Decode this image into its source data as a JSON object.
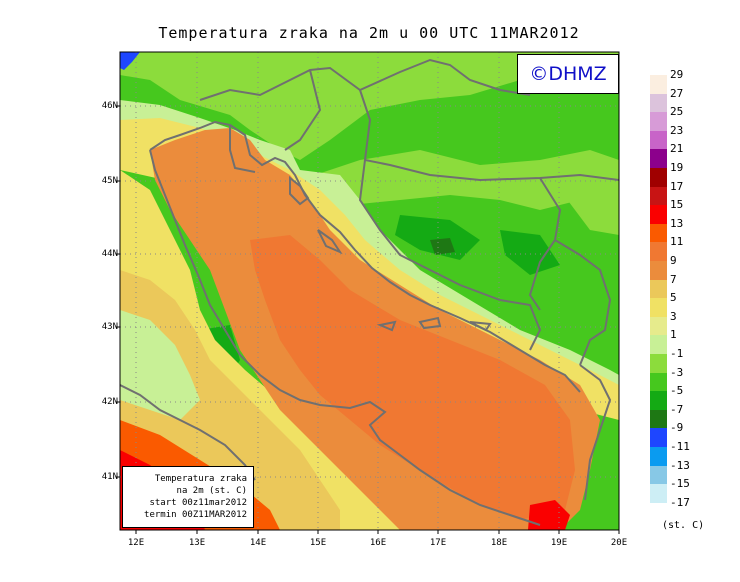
{
  "title": "Temperatura zraka na 2m u 00 UTC 11MAR2012",
  "logo": "©DHMZ",
  "lat_labels": [
    "46N",
    "45N",
    "44N",
    "43N",
    "42N",
    "41N"
  ],
  "lon_labels": [
    "12E",
    "13E",
    "14E",
    "15E",
    "16E",
    "17E",
    "18E",
    "19E",
    "20E"
  ],
  "infobox": {
    "line1": "Temperatura zraka",
    "line2": "na 2m (st. C)",
    "line3": "start 00z11mar2012",
    "line4": "termin 00Z11MAR2012"
  },
  "colorbar": {
    "labels": [
      "29",
      "27",
      "25",
      "23",
      "21",
      "19",
      "17",
      "15",
      "13",
      "11",
      "9",
      "7",
      "5",
      "3",
      "1",
      "-1",
      "-3",
      "-5",
      "-7",
      "-9",
      "-11",
      "-13",
      "-15",
      "-17"
    ],
    "colors": [
      "#fbeee0",
      "#dcc3dc",
      "#d79bd7",
      "#c864c8",
      "#8c008c",
      "#a00000",
      "#c81414",
      "#fa0000",
      "#fa5a00",
      "#f07832",
      "#eb8c3c",
      "#ebc85a",
      "#f0e164",
      "#e6eb8c",
      "#c8f096",
      "#8cdc3c",
      "#46c81e",
      "#14aa14",
      "#1e7814",
      "#1e46ff",
      "#0a9bf0",
      "#87c8e6",
      "#cdeef5",
      "#ffffff"
    ],
    "units": "(st. C)"
  },
  "map": {
    "lat_range": [
      40.25,
      46.75
    ],
    "lon_range": [
      11.8,
      20.0
    ],
    "grid": "dotted",
    "sea_temp_color": "#eb8c3c",
    "inland_temp_color": "#46c81e"
  }
}
